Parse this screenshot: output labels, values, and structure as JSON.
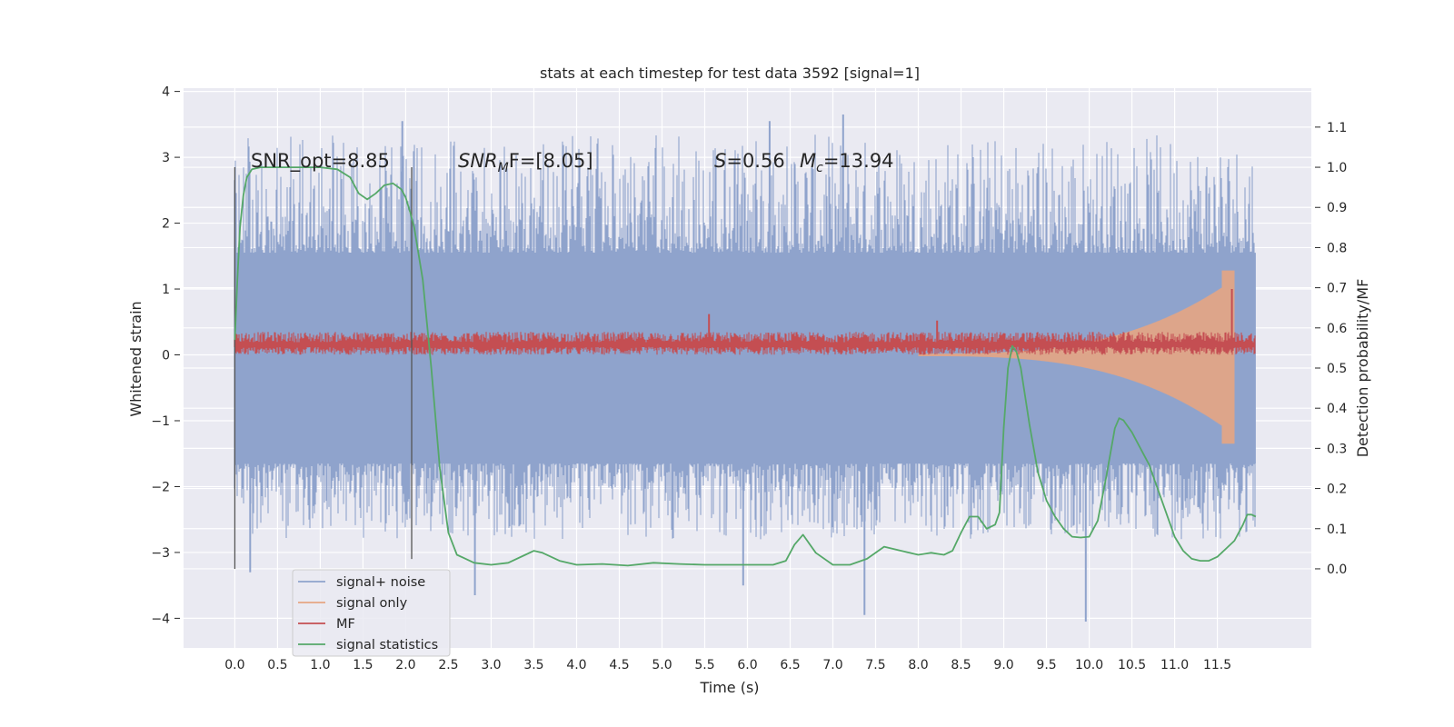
{
  "chart_data": {
    "type": "line",
    "title": "stats at each timestep for test data 3592 [signal=1]",
    "xlabel": "Time (s)",
    "ylabel": "Whitened strain",
    "y2label": "Detection probability/MF",
    "xlim": [
      -0.6,
      12.6
    ],
    "ylim": [
      -4.45,
      4.05
    ],
    "y2lim": [
      -0.197,
      1.197
    ],
    "grid": true,
    "legend_position": "lower-left",
    "x_ticks": [
      "0.0",
      "0.5",
      "1.0",
      "1.5",
      "2.0",
      "2.5",
      "3.0",
      "3.5",
      "4.0",
      "4.5",
      "5.0",
      "5.5",
      "6.0",
      "6.5",
      "7.0",
      "7.5",
      "8.0",
      "8.5",
      "9.0",
      "9.5",
      "10.0",
      "10.5",
      "11.0",
      "11.5"
    ],
    "y_ticks": [
      "4",
      "3",
      "2",
      "1",
      "0",
      "−1",
      "−2",
      "−3",
      "−4"
    ],
    "y2_ticks": [
      "1.1",
      "1.0",
      "0.9",
      "0.8",
      "0.7",
      "0.6",
      "0.5",
      "0.4",
      "0.3",
      "0.2",
      "0.1",
      "0.0"
    ],
    "annotations": {
      "snr_opt": "SNR_opt=8.85",
      "snr_mf_main": "SNR",
      "snr_mf_sub": "M",
      "snr_mf_rest": "F=[8.05]",
      "s_label": "S",
      "s_value": "=0.56",
      "mc_label": "M",
      "mc_sub": "c",
      "mc_value": "=13.94"
    },
    "markers": [
      {
        "x": 0.0,
        "y_range": [
          -3.25,
          2.85
        ]
      },
      {
        "x": 2.07,
        "y_range": [
          -3.1,
          2.85
        ]
      }
    ],
    "series": [
      {
        "name": "signal+ noise",
        "color": "#8fa3cc",
        "axis": "left",
        "x_range": [
          0.0,
          11.95
        ],
        "envelope_core": [
          -1.65,
          1.55
        ],
        "typical_peak_range": [
          -2.8,
          3.35
        ],
        "notable_spikes": [
          {
            "x": 1.96,
            "y": 3.55
          },
          {
            "x": 0.18,
            "y": -3.3
          },
          {
            "x": 2.81,
            "y": -3.65
          },
          {
            "x": 6.26,
            "y": 3.55
          },
          {
            "x": 7.12,
            "y": 3.65
          },
          {
            "x": 7.37,
            "y": -3.95
          },
          {
            "x": 9.96,
            "y": -4.05
          },
          {
            "x": 5.95,
            "y": -3.5
          }
        ]
      },
      {
        "name": "signal only",
        "color": "#e6a583",
        "axis": "left",
        "description_points": [
          [
            0.0,
            0.0
          ],
          [
            8.0,
            0.0
          ],
          [
            10.0,
            -0.15
          ],
          [
            11.0,
            -0.5
          ],
          [
            11.55,
            -1.1
          ],
          [
            11.65,
            1.4
          ],
          [
            11.68,
            -1.45
          ],
          [
            11.7,
            0.0
          ]
        ]
      },
      {
        "name": "MF",
        "color": "#c44e52",
        "axis": "left",
        "baseline": 0.15,
        "band": [
          0.0,
          0.35
        ],
        "notable_spikes": [
          {
            "x": 5.55,
            "y": 0.62
          },
          {
            "x": 8.22,
            "y": 0.52
          },
          {
            "x": 11.67,
            "y": 1.0
          }
        ]
      },
      {
        "name": "signal statistics",
        "color": "#55a868",
        "axis": "right",
        "x": [
          0.0,
          0.03,
          0.06,
          0.1,
          0.14,
          0.2,
          0.3,
          0.5,
          0.8,
          1.0,
          1.2,
          1.35,
          1.45,
          1.55,
          1.65,
          1.75,
          1.85,
          1.95,
          2.0,
          2.05,
          2.1,
          2.2,
          2.3,
          2.4,
          2.5,
          2.6,
          2.8,
          3.0,
          3.2,
          3.4,
          3.5,
          3.6,
          3.8,
          4.0,
          4.3,
          4.6,
          4.9,
          5.2,
          5.5,
          5.9,
          6.1,
          6.3,
          6.45,
          6.55,
          6.65,
          6.8,
          7.0,
          7.2,
          7.4,
          7.6,
          7.8,
          8.0,
          8.15,
          8.3,
          8.4,
          8.5,
          8.6,
          8.7,
          8.8,
          8.9,
          8.95,
          9.0,
          9.05,
          9.1,
          9.15,
          9.2,
          9.3,
          9.4,
          9.5,
          9.6,
          9.7,
          9.8,
          9.9,
          10.0,
          10.1,
          10.2,
          10.3,
          10.35,
          10.4,
          10.5,
          10.6,
          10.7,
          10.8,
          10.9,
          11.0,
          11.1,
          11.2,
          11.3,
          11.4,
          11.5,
          11.6,
          11.7,
          11.8,
          11.85,
          11.9,
          11.95
        ],
        "values": [
          0.57,
          0.72,
          0.85,
          0.93,
          0.975,
          0.995,
          1.0,
          1.0,
          1.0,
          1.0,
          0.995,
          0.975,
          0.935,
          0.92,
          0.935,
          0.955,
          0.96,
          0.945,
          0.925,
          0.89,
          0.85,
          0.72,
          0.5,
          0.25,
          0.09,
          0.035,
          0.015,
          0.01,
          0.015,
          0.035,
          0.045,
          0.04,
          0.02,
          0.01,
          0.012,
          0.008,
          0.015,
          0.012,
          0.01,
          0.01,
          0.01,
          0.01,
          0.02,
          0.06,
          0.085,
          0.04,
          0.01,
          0.01,
          0.025,
          0.055,
          0.045,
          0.035,
          0.04,
          0.035,
          0.045,
          0.09,
          0.13,
          0.13,
          0.1,
          0.11,
          0.14,
          0.35,
          0.5,
          0.555,
          0.54,
          0.5,
          0.36,
          0.24,
          0.17,
          0.13,
          0.1,
          0.08,
          0.078,
          0.08,
          0.12,
          0.23,
          0.35,
          0.375,
          0.37,
          0.34,
          0.3,
          0.26,
          0.2,
          0.14,
          0.08,
          0.045,
          0.025,
          0.02,
          0.02,
          0.03,
          0.05,
          0.07,
          0.11,
          0.135,
          0.135,
          0.13
        ]
      }
    ]
  },
  "legend": {
    "items": [
      {
        "label": "signal+ noise",
        "color": "#8fa3cc"
      },
      {
        "label": "signal only",
        "color": "#e6a583"
      },
      {
        "label": "MF",
        "color": "#c44e52"
      },
      {
        "label": "signal statistics",
        "color": "#55a868"
      }
    ]
  }
}
